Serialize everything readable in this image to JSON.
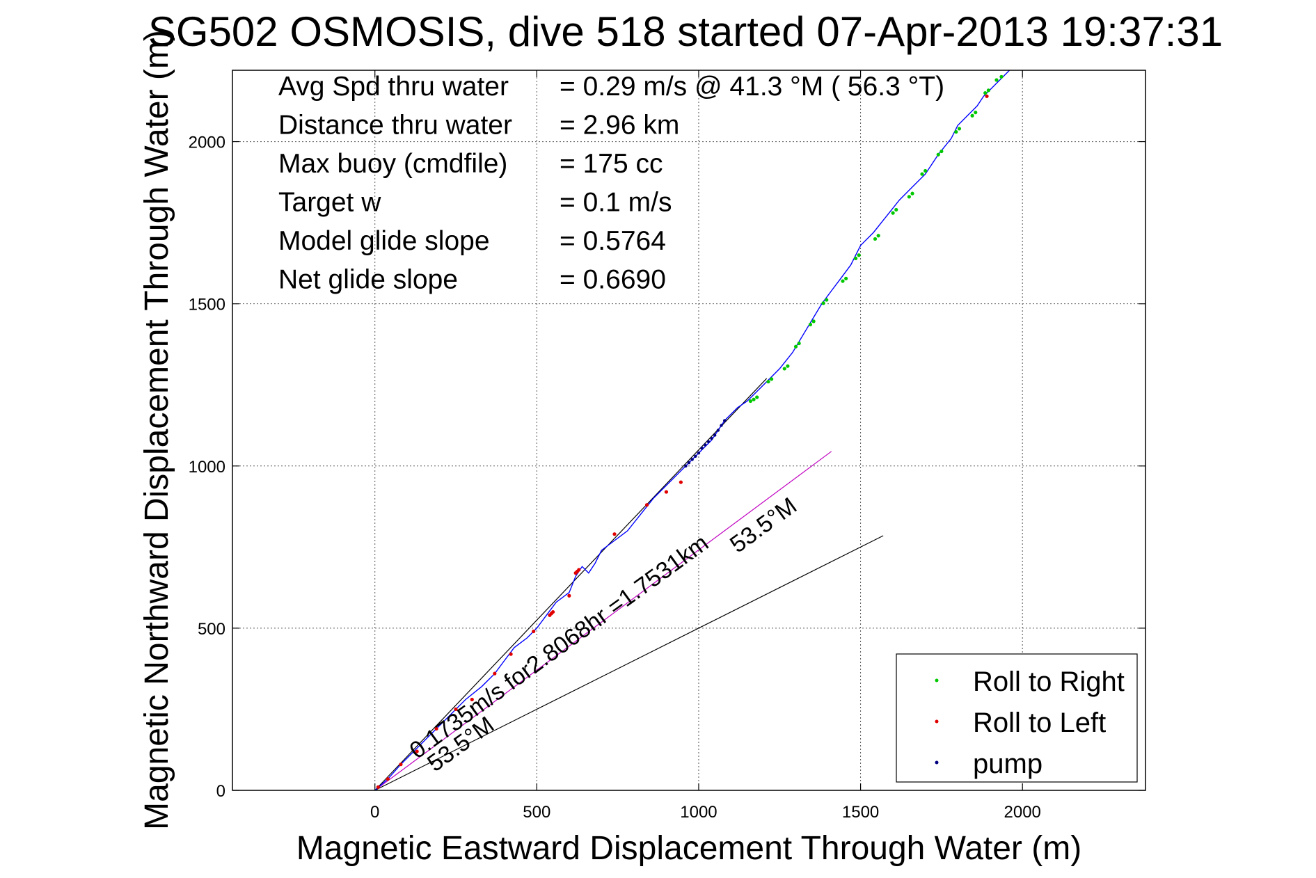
{
  "chart_data": {
    "type": "line",
    "title": "SG502 OSMOSIS, dive 518 started 07-Apr-2013 19:37:31",
    "xlabel": "Magnetic Eastward Displacement Through Water (m)",
    "ylabel": "Magnetic Northward Displacement Through Water (m)",
    "xlim": [
      -440,
      2380
    ],
    "ylim": [
      0,
      2220
    ],
    "xticks": [
      0,
      500,
      1000,
      1500,
      2000
    ],
    "yticks": [
      0,
      500,
      1000,
      1500,
      2000
    ],
    "grid": true,
    "stats": [
      {
        "label": "Avg Spd thru water",
        "value": "=  0.29 m/s @  41.3 °M ( 56.3 °T)"
      },
      {
        "label": "Distance thru water",
        "value": "=  2.96 km"
      },
      {
        "label": "Max buoy (cmdfile)",
        "value": "= 175 cc"
      },
      {
        "label": "Target w",
        "value": "= 0.1 m/s"
      },
      {
        "label": "Model glide slope",
        "value": "= 0.5764"
      },
      {
        "label": "Net glide slope",
        "value": "= 0.6690"
      }
    ],
    "track": {
      "color": "#0000ff",
      "x": [
        0,
        40,
        80,
        120,
        160,
        200,
        240,
        280,
        330,
        370,
        400,
        430,
        470,
        500,
        530,
        560,
        600,
        620,
        640,
        660,
        680,
        700,
        740,
        780,
        820,
        860,
        900,
        950,
        1000,
        1040,
        1080,
        1120,
        1150,
        1180,
        1210,
        1250,
        1290,
        1320,
        1350,
        1380,
        1410,
        1440,
        1470,
        1500,
        1540,
        1580,
        1620,
        1660,
        1700,
        1740,
        1780,
        1800,
        1830,
        1860,
        1880,
        1900,
        1930,
        1960
      ],
      "y": [
        0,
        35,
        80,
        120,
        160,
        200,
        240,
        280,
        320,
        360,
        400,
        440,
        470,
        500,
        540,
        580,
        610,
        660,
        690,
        670,
        700,
        740,
        770,
        800,
        850,
        900,
        940,
        990,
        1040,
        1080,
        1140,
        1180,
        1200,
        1230,
        1260,
        1300,
        1350,
        1400,
        1450,
        1500,
        1540,
        1580,
        1620,
        1680,
        1720,
        1770,
        1820,
        1860,
        1900,
        1960,
        2010,
        2050,
        2080,
        2110,
        2140,
        2160,
        2190,
        2220
      ]
    },
    "roll_right": {
      "color": "#00c800",
      "x": [
        1160,
        1170,
        1180,
        1215,
        1225,
        1265,
        1275,
        1300,
        1310,
        1345,
        1355,
        1385,
        1395,
        1445,
        1455,
        1485,
        1495,
        1545,
        1555,
        1600,
        1610,
        1650,
        1660,
        1690,
        1700,
        1740,
        1750,
        1795,
        1805,
        1845,
        1855,
        1885,
        1895,
        1920,
        1935
      ],
      "y": [
        1200,
        1205,
        1212,
        1260,
        1268,
        1300,
        1308,
        1368,
        1378,
        1436,
        1446,
        1502,
        1512,
        1570,
        1578,
        1640,
        1650,
        1700,
        1710,
        1780,
        1790,
        1830,
        1840,
        1900,
        1910,
        1960,
        1970,
        2030,
        2040,
        2080,
        2090,
        2150,
        2158,
        2190,
        2200
      ]
    },
    "roll_left": {
      "color": "#e00000",
      "x": [
        10,
        40,
        80,
        130,
        190,
        250,
        300,
        370,
        420,
        490,
        540,
        545,
        550,
        600,
        620,
        625,
        630,
        740,
        840,
        900,
        945,
        1890
      ],
      "y": [
        10,
        35,
        80,
        120,
        190,
        250,
        280,
        360,
        420,
        490,
        540,
        545,
        550,
        600,
        670,
        675,
        680,
        790,
        880,
        920,
        950,
        2140
      ]
    },
    "pump": {
      "color": "#000080",
      "x": [
        960,
        970,
        980,
        990,
        1000,
        1010,
        1020,
        1030,
        1040,
        1050,
        1060,
        1070,
        1080
      ],
      "y": [
        1000,
        1010,
        1020,
        1030,
        1040,
        1055,
        1065,
        1075,
        1085,
        1095,
        1110,
        1125,
        1140
      ]
    },
    "ref_lines": [
      {
        "x": [
          0,
          1210
        ],
        "y": [
          0,
          1270
        ],
        "color": "#000000"
      },
      {
        "x": [
          0,
          1410
        ],
        "y": [
          0,
          1045
        ],
        "color": "#c000c0"
      },
      {
        "x": [
          0,
          1570
        ],
        "y": [
          0,
          785
        ],
        "color": "#000000"
      }
    ],
    "annotations": [
      {
        "text": "0.1735m/s for2.8068hr =1.7531km",
        "x": 130,
        "y": 95,
        "angle": -36
      },
      {
        "text": "53.5°M",
        "x": 1120,
        "y": 730,
        "angle": -36
      },
      {
        "text": "53.5°M",
        "x": 185,
        "y": 55,
        "angle": -36
      }
    ],
    "legend": {
      "position": "bottom-right",
      "entries": [
        {
          "label": "Roll to Right",
          "color": "#00c800"
        },
        {
          "label": "Roll to Left",
          "color": "#e00000"
        },
        {
          "label": "pump",
          "color": "#000080"
        }
      ]
    }
  }
}
